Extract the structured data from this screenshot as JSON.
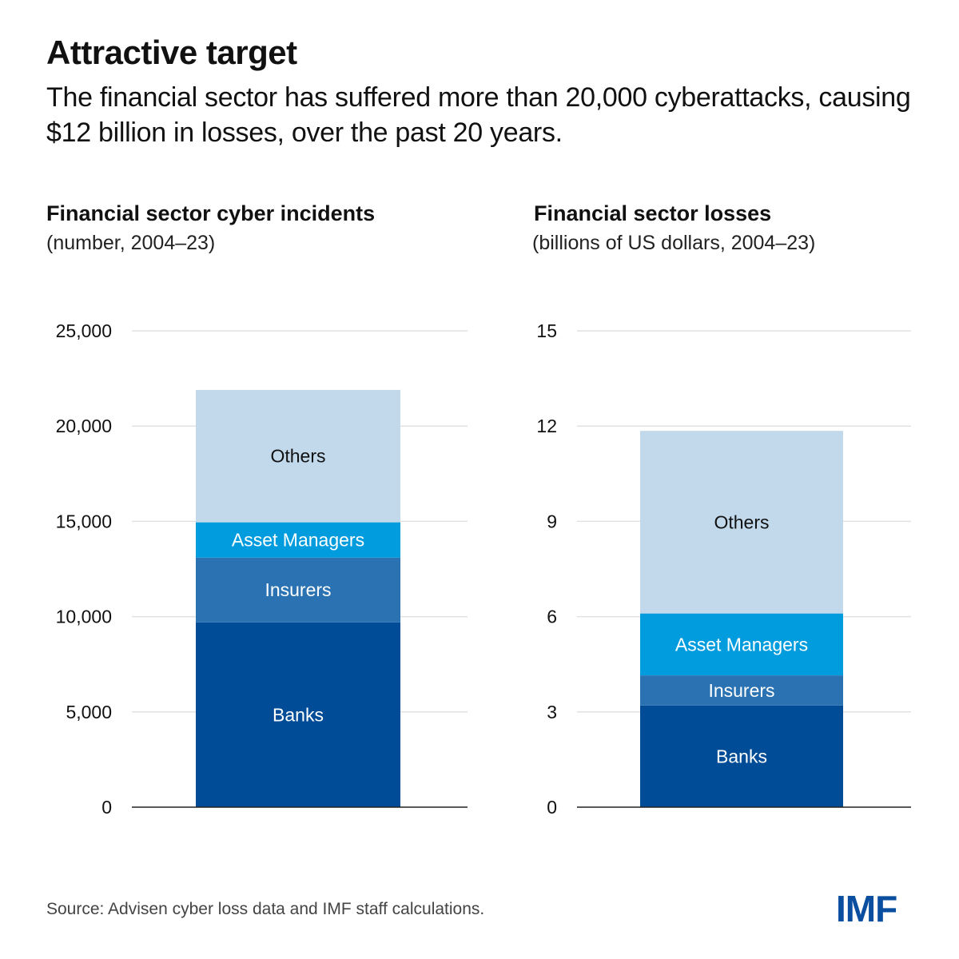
{
  "header": {
    "title": "Attractive target",
    "subtitle": "The financial sector has suffered more than 20,000 cyberattacks, causing $12 billion in losses, over the past 20 years."
  },
  "footer": {
    "source": "Source: Advisen cyber loss data and IMF staff calculations.",
    "logo": "IMF"
  },
  "colors": {
    "Banks": "#004c97",
    "Insurers": "#2a72b2",
    "Asset Managers": "#009cde",
    "Others": "#c2d8eb",
    "grid": "#e2e2e2",
    "axis": "#222222"
  },
  "chart_data": [
    {
      "type": "bar",
      "stacked": true,
      "title": "Financial sector cyber incidents",
      "subtitle": "(number, 2004–23)",
      "categories": [
        ""
      ],
      "series": [
        {
          "name": "Banks",
          "values": [
            9700
          ]
        },
        {
          "name": "Insurers",
          "values": [
            3400
          ]
        },
        {
          "name": "Asset Managers",
          "values": [
            1850
          ]
        },
        {
          "name": "Others",
          "values": [
            6950
          ]
        }
      ],
      "ylim": [
        0,
        25000
      ],
      "yticks": [
        0,
        5000,
        10000,
        15000,
        20000,
        25000
      ],
      "ytick_labels": [
        "0",
        "5,000",
        "10,000",
        "15,000",
        "20,000",
        "25,000"
      ],
      "grid": true,
      "legend": "inline labels"
    },
    {
      "type": "bar",
      "stacked": true,
      "title": "Financial sector losses",
      "subtitle": "(billions of US dollars, 2004–23)",
      "categories": [
        ""
      ],
      "series": [
        {
          "name": "Banks",
          "values": [
            3.2
          ]
        },
        {
          "name": "Insurers",
          "values": [
            0.95
          ]
        },
        {
          "name": "Asset Managers",
          "values": [
            1.95
          ]
        },
        {
          "name": "Others",
          "values": [
            5.75
          ]
        }
      ],
      "ylim": [
        0,
        15
      ],
      "yticks": [
        0,
        3,
        6,
        9,
        12,
        15
      ],
      "ytick_labels": [
        "0",
        "3",
        "6",
        "9",
        "12",
        "15"
      ],
      "grid": true,
      "legend": "inline labels"
    }
  ]
}
